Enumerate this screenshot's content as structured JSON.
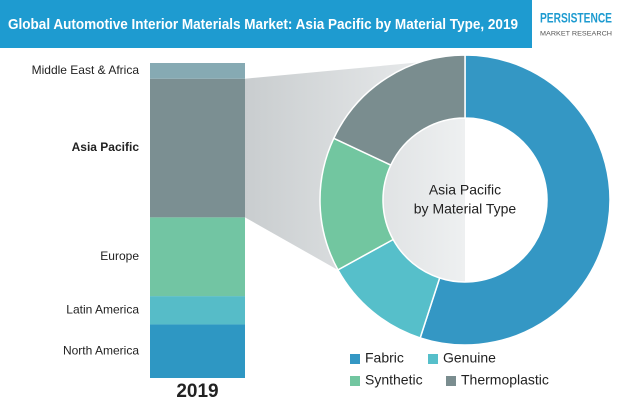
{
  "logo": {
    "line1": "PERSISTENCE",
    "line2": "MARKET RESEARCH"
  },
  "chart_data": [
    {
      "type": "bar",
      "stacked": true,
      "title": "Global Automotive Interior Materials Market: Asia Pacific by Material Type, 2019",
      "categories": [
        "2019"
      ],
      "series": [
        {
          "name": "North America",
          "color": "#2e97c3",
          "values": [
            17
          ]
        },
        {
          "name": "Latin America",
          "color": "#56bcc8",
          "values": [
            9
          ]
        },
        {
          "name": "Europe",
          "color": "#72c5a3",
          "values": [
            25
          ]
        },
        {
          "name": "Asia Pacific",
          "color": "#7b8f92",
          "values": [
            44
          ]
        },
        {
          "name": "Middle East & Africa",
          "color": "#86aab3",
          "values": [
            5
          ]
        }
      ]
    },
    {
      "type": "pie",
      "donut": true,
      "center_label": [
        "Asia Pacific",
        "by Material Type"
      ],
      "categories": [
        "Fabric",
        "Genuine",
        "Synthetic",
        "Thermoplastic"
      ],
      "values": [
        55,
        12,
        15,
        18
      ],
      "colors": [
        "#3497c4",
        "#56bfca",
        "#72c6a0",
        "#7a8d8f"
      ]
    }
  ]
}
